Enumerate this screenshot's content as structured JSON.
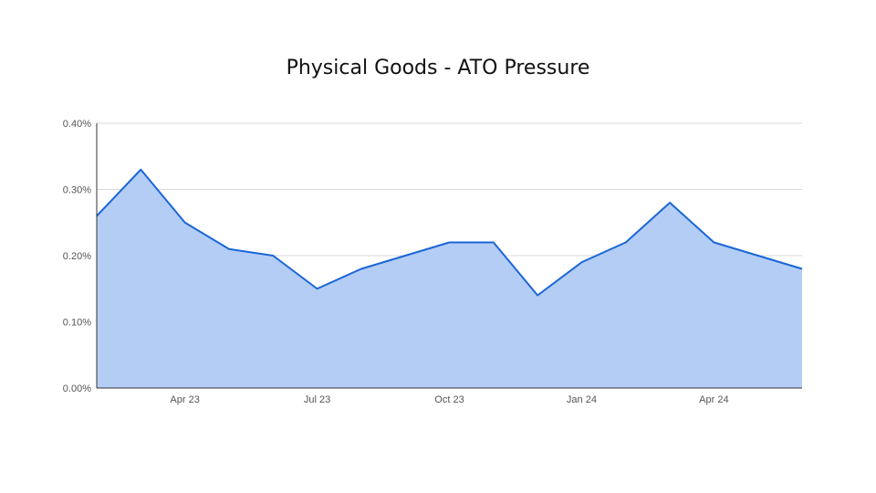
{
  "chart_data": {
    "type": "area",
    "title": "Physical Goods - ATO Pressure",
    "xlabel": "",
    "ylabel": "",
    "x": [
      "Feb 23",
      "Mar 23",
      "Apr 23",
      "May 23",
      "Jun 23",
      "Jul 23",
      "Aug 23",
      "Sep 23",
      "Oct 23",
      "Nov 23",
      "Dec 23",
      "Jan 24",
      "Feb 24",
      "Mar 24",
      "Apr 24",
      "May 24",
      "Jun 24"
    ],
    "series": [
      {
        "values": [
          0.26,
          0.33,
          0.25,
          0.21,
          0.2,
          0.15,
          0.18,
          0.2,
          0.22,
          0.22,
          0.14,
          0.19,
          0.22,
          0.28,
          0.22,
          0.2,
          0.18
        ]
      }
    ],
    "x_ticks": [
      "Apr 23",
      "Jul 23",
      "Oct 23",
      "Jan 24",
      "Apr 24"
    ],
    "y_ticks": [
      "0.00%",
      "0.10%",
      "0.20%",
      "0.30%",
      "0.40%"
    ],
    "ylim": [
      0,
      0.4
    ],
    "grid": true,
    "legend": "none",
    "colors": {
      "line": "#1a66d6",
      "fill": "#b4cdf5",
      "grid": "#d9d9d9",
      "axis": "#333333"
    }
  }
}
